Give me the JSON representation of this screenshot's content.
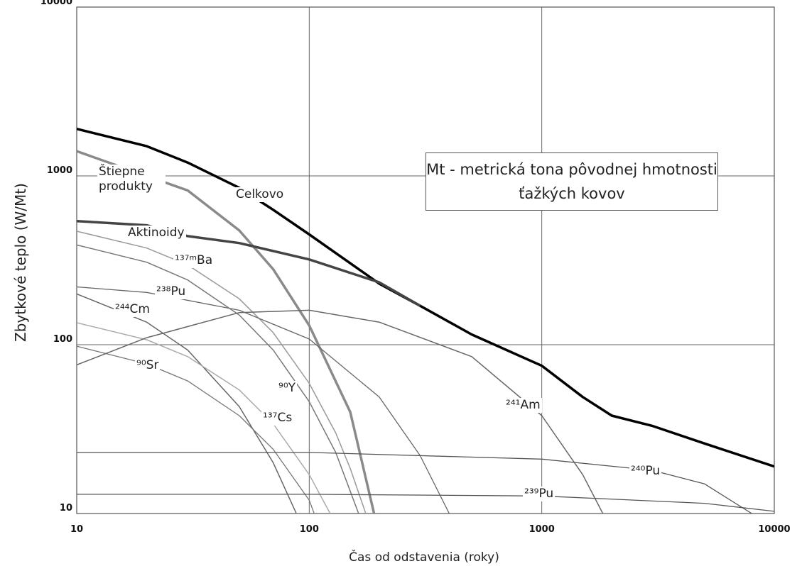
{
  "chart_data": {
    "type": "line",
    "log_x": true,
    "log_y": true,
    "grid": true,
    "xlabel": "Čas od odstavenia (roky)",
    "ylabel": "Zbytkové teplo (W/Mt)",
    "annotation": "Mt - metrická tona pôvodnej hmotnosti ťažkých kovov",
    "xlim": [
      10,
      10000
    ],
    "ylim": [
      10,
      10000
    ],
    "xticks": [
      10,
      100,
      1000,
      10000
    ],
    "yticks": [
      10,
      100,
      1000,
      10000
    ],
    "series": [
      {
        "name": "Celkovo",
        "color": "#000000",
        "x": [
          10,
          20,
          30,
          50,
          70,
          100,
          200,
          300,
          500,
          1000,
          1500,
          2000,
          3000,
          5000,
          10000
        ],
        "values": [
          1900,
          1500,
          1200,
          850,
          630,
          450,
          230,
          170,
          115,
          75,
          49,
          38,
          33,
          26,
          19
        ]
      },
      {
        "name": "Štiepne produkty",
        "color": "#8a8a8a",
        "x": [
          10,
          30,
          50,
          70,
          100,
          150,
          190
        ],
        "values": [
          1400,
          820,
          475,
          280,
          130,
          40,
          10
        ]
      },
      {
        "name": "Aktinoidy",
        "color": "#444444",
        "x": [
          10,
          20,
          30,
          50,
          100,
          200,
          300
        ],
        "values": [
          540,
          510,
          440,
          400,
          320,
          234,
          170
        ]
      },
      {
        "name": "¹³⁷ᵐBa",
        "color": "#999999",
        "x": [
          10,
          20,
          30,
          50,
          70,
          100,
          130,
          150,
          175
        ],
        "values": [
          470,
          374,
          297,
          187,
          118,
          59,
          30,
          18.5,
          10
        ]
      },
      {
        "name": "²³⁸Pu",
        "color": "#666666",
        "x": [
          10,
          20,
          50,
          100,
          200,
          300,
          400
        ],
        "values": [
          220,
          204,
          160,
          108,
          49,
          22,
          10
        ]
      },
      {
        "name": "²⁴⁴Cm",
        "color": "#666666",
        "x": [
          10,
          20,
          30,
          50,
          70,
          88
        ],
        "values": [
          200,
          136,
          93,
          43,
          20,
          10
        ]
      },
      {
        "name": "⁹⁰Sr",
        "color": "#777777",
        "x": [
          10,
          20,
          30,
          50,
          70,
          100,
          105
        ],
        "values": [
          98,
          77,
          61,
          38,
          24,
          12,
          10
        ]
      },
      {
        "name": "⁹⁰Y",
        "color": "#777777",
        "x": [
          10,
          20,
          30,
          50,
          70,
          100,
          130,
          163
        ],
        "values": [
          390,
          308,
          242,
          150,
          93,
          46,
          23,
          10
        ]
      },
      {
        "name": "¹³⁷Cs",
        "color": "#aaaaaa",
        "x": [
          10,
          20,
          30,
          50,
          70,
          100,
          123
        ],
        "values": [
          135,
          107,
          85,
          54,
          34,
          17,
          10
        ]
      },
      {
        "name": "²⁴¹Am",
        "color": "#666666",
        "x": [
          10,
          20,
          50,
          100,
          200,
          500,
          1000,
          1500,
          1830
        ],
        "values": [
          76,
          110,
          155,
          160,
          136,
          85,
          38,
          17,
          10
        ]
      },
      {
        "name": "²⁴⁰Pu",
        "color": "#555555",
        "x": [
          10,
          100,
          1000,
          3000,
          5000,
          8000
        ],
        "values": [
          23,
          23,
          21,
          18,
          15,
          10
        ]
      },
      {
        "name": "²³⁹Pu",
        "color": "#555555",
        "x": [
          10,
          100,
          1000,
          5000,
          10000
        ],
        "values": [
          13,
          13,
          12.7,
          11.5,
          10.3
        ]
      }
    ]
  }
}
